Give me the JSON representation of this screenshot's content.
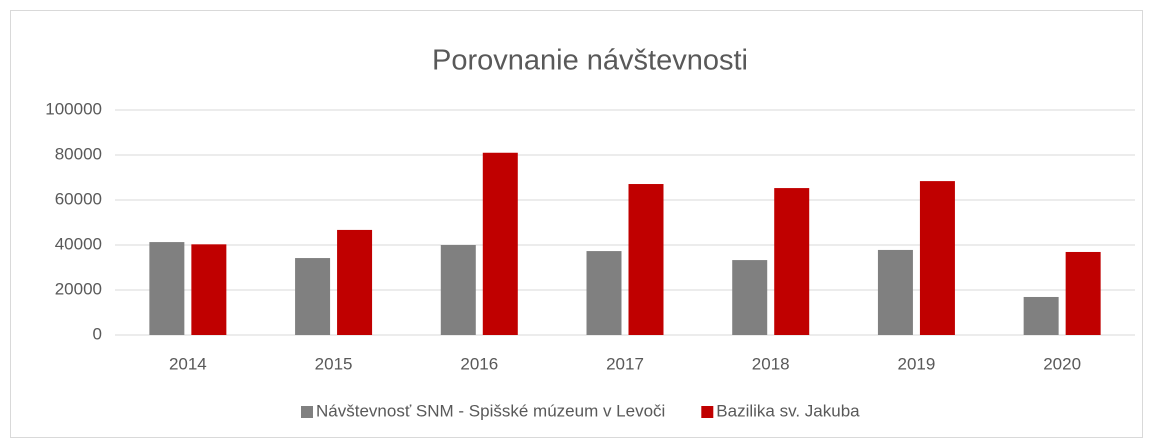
{
  "chart_data": {
    "type": "bar",
    "title": "Porovnanie návštevnosti",
    "categories": [
      "2014",
      "2015",
      "2016",
      "2017",
      "2018",
      "2019",
      "2020"
    ],
    "series": [
      {
        "name": "Návštevnosť SNM - Spišské múzeum v Levoči",
        "color": "#808080",
        "values": [
          41300,
          34200,
          40000,
          37300,
          33300,
          37800,
          16900
        ]
      },
      {
        "name": "Bazilika sv. Jakuba",
        "color": "#c00000",
        "values": [
          40300,
          46700,
          81000,
          67100,
          65300,
          68400,
          36900
        ]
      }
    ],
    "ylim": [
      0,
      100000
    ],
    "yticks": [
      0,
      20000,
      40000,
      60000,
      80000,
      100000
    ],
    "grid": true,
    "legend": "bottom"
  }
}
